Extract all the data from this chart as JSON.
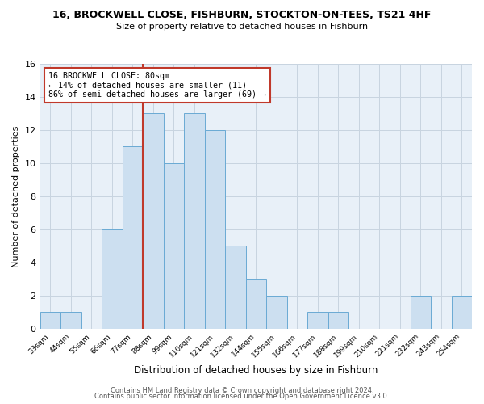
{
  "title1": "16, BROCKWELL CLOSE, FISHBURN, STOCKTON-ON-TEES, TS21 4HF",
  "title2": "Size of property relative to detached houses in Fishburn",
  "xlabel": "Distribution of detached houses by size in Fishburn",
  "ylabel": "Number of detached properties",
  "bar_labels": [
    "33sqm",
    "44sqm",
    "55sqm",
    "66sqm",
    "77sqm",
    "88sqm",
    "99sqm",
    "110sqm",
    "121sqm",
    "132sqm",
    "144sqm",
    "155sqm",
    "166sqm",
    "177sqm",
    "188sqm",
    "199sqm",
    "210sqm",
    "221sqm",
    "232sqm",
    "243sqm",
    "254sqm"
  ],
  "bar_values": [
    1,
    1,
    0,
    6,
    11,
    13,
    10,
    13,
    12,
    5,
    3,
    2,
    0,
    1,
    1,
    0,
    0,
    0,
    2,
    0,
    2
  ],
  "bar_color": "#ccdff0",
  "bar_edge_color": "#6aaad4",
  "vline_color": "#c0392b",
  "annotation_text": "16 BROCKWELL CLOSE: 80sqm\n← 14% of detached houses are smaller (11)\n86% of semi-detached houses are larger (69) →",
  "annotation_box_color": "#ffffff",
  "annotation_box_edge": "#c0392b",
  "ylim": [
    0,
    16
  ],
  "yticks": [
    0,
    2,
    4,
    6,
    8,
    10,
    12,
    14,
    16
  ],
  "footer1": "Contains HM Land Registry data © Crown copyright and database right 2024.",
  "footer2": "Contains public sector information licensed under the Open Government Licence v3.0.",
  "grid_color": "#c8d4e0",
  "bg_color": "#e8f0f8"
}
